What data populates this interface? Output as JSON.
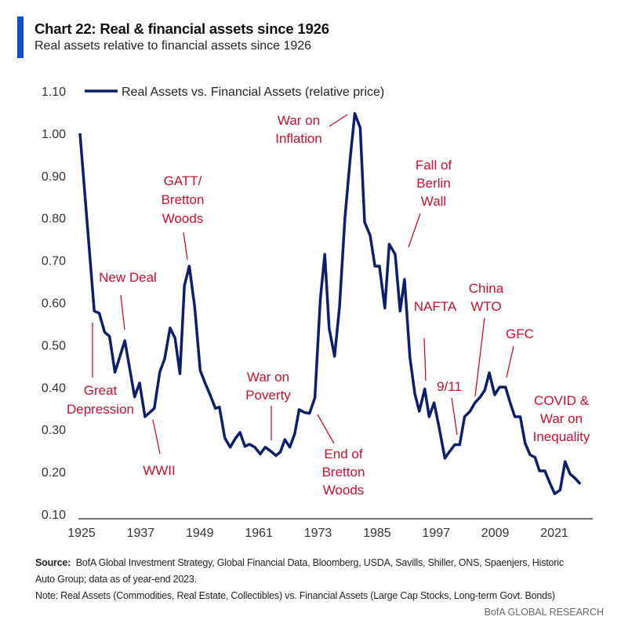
{
  "header": {
    "title": "Chart 22: Real & financial assets since 1926",
    "subtitle": "Real assets relative to financial assets since 1926"
  },
  "footer": {
    "source_label": "Source:",
    "source_text": "BofA Global Investment Strategy, Global Financial Data, Bloomberg, USDA, Savills, Shiller, ONS, Spaenjers, Historic",
    "source_text_2": "Auto Group; data as of year-end 2023.",
    "note": "Note: Real Assets (Commodities, Real Estate, Collectibles) vs. Financial Assets (Large Cap Stocks, Long-term Govt. Bonds)",
    "brand": "BofA GLOBAL RESEARCH"
  },
  "colors": {
    "line": "#0d1f6b",
    "annotation": "#c8102e",
    "title_bar": "#0b4fc9"
  },
  "chart_data": {
    "type": "line",
    "title": "Chart 22: Real & financial assets since 1926",
    "xlabel": "",
    "ylabel": "",
    "xlim": [
      1925,
      2027
    ],
    "ylim": [
      0.1,
      1.1
    ],
    "xticks": [
      "1925",
      "1937",
      "1949",
      "1961",
      "1973",
      "1985",
      "1997",
      "2009",
      "2021"
    ],
    "yticks": [
      "0.10",
      "0.20",
      "0.30",
      "0.40",
      "0.50",
      "0.60",
      "0.70",
      "0.80",
      "0.90",
      "1.00",
      "1.10"
    ],
    "grid": false,
    "legend": "top-left",
    "series": [
      {
        "name": "Real Assets vs. Financial Assets (relative price)",
        "points": [
          [
            1925.0,
            1.0
          ],
          [
            1927.9,
            0.58
          ],
          [
            1928.9,
            0.575
          ],
          [
            1930.0,
            0.53
          ],
          [
            1931.0,
            0.52
          ],
          [
            1932.1,
            0.435
          ],
          [
            1934.1,
            0.51
          ],
          [
            1936.1,
            0.377
          ],
          [
            1937.1,
            0.41
          ],
          [
            1938.2,
            0.33
          ],
          [
            1940.1,
            0.35
          ],
          [
            1941.2,
            0.436
          ],
          [
            1942.2,
            0.467
          ],
          [
            1943.3,
            0.54
          ],
          [
            1944.3,
            0.516
          ],
          [
            1945.3,
            0.432
          ],
          [
            1946.2,
            0.64
          ],
          [
            1947.2,
            0.686
          ],
          [
            1948.3,
            0.59
          ],
          [
            1949.4,
            0.44
          ],
          [
            1950.4,
            0.41
          ],
          [
            1951.5,
            0.38
          ],
          [
            1952.5,
            0.35
          ],
          [
            1953.3,
            0.353
          ],
          [
            1954.4,
            0.28
          ],
          [
            1955.5,
            0.258
          ],
          [
            1956.5,
            0.278
          ],
          [
            1957.5,
            0.293
          ],
          [
            1958.5,
            0.26
          ],
          [
            1959.4,
            0.265
          ],
          [
            1960.5,
            0.258
          ],
          [
            1961.6,
            0.242
          ],
          [
            1962.6,
            0.258
          ],
          [
            1963.7,
            0.249
          ],
          [
            1964.8,
            0.238
          ],
          [
            1965.7,
            0.247
          ],
          [
            1966.6,
            0.276
          ],
          [
            1967.6,
            0.258
          ],
          [
            1968.6,
            0.29
          ],
          [
            1969.5,
            0.347
          ],
          [
            1970.6,
            0.34
          ],
          [
            1971.6,
            0.338
          ],
          [
            1972.7,
            0.375
          ],
          [
            1973.8,
            0.607
          ],
          [
            1974.7,
            0.714
          ],
          [
            1975.6,
            0.539
          ],
          [
            1976.7,
            0.473
          ],
          [
            1977.7,
            0.59
          ],
          [
            1978.8,
            0.8
          ],
          [
            1979.9,
            0.944
          ],
          [
            1980.8,
            1.047
          ],
          [
            1981.9,
            1.013
          ],
          [
            1982.8,
            0.79
          ],
          [
            1983.9,
            0.759
          ],
          [
            1984.9,
            0.686
          ],
          [
            1985.8,
            0.686
          ],
          [
            1986.9,
            0.587
          ],
          [
            1987.8,
            0.738
          ],
          [
            1989.0,
            0.714
          ],
          [
            1990.0,
            0.58
          ],
          [
            1990.9,
            0.655
          ],
          [
            1992.0,
            0.47
          ],
          [
            1993.0,
            0.384
          ],
          [
            1993.9,
            0.343
          ],
          [
            1995.0,
            0.396
          ],
          [
            1995.9,
            0.33
          ],
          [
            1996.9,
            0.363
          ],
          [
            1997.9,
            0.306
          ],
          [
            1999.1,
            0.232
          ],
          [
            2000.0,
            0.247
          ],
          [
            2001.1,
            0.264
          ],
          [
            2002.1,
            0.264
          ],
          [
            2003.1,
            0.33
          ],
          [
            2004.2,
            0.343
          ],
          [
            2005.2,
            0.363
          ],
          [
            2006.3,
            0.377
          ],
          [
            2007.2,
            0.393
          ],
          [
            2008.1,
            0.434
          ],
          [
            2009.2,
            0.382
          ],
          [
            2010.2,
            0.4
          ],
          [
            2011.4,
            0.4
          ],
          [
            2012.4,
            0.361
          ],
          [
            2013.3,
            0.33
          ],
          [
            2014.4,
            0.33
          ],
          [
            2015.4,
            0.267
          ],
          [
            2016.4,
            0.24
          ],
          [
            2017.4,
            0.234
          ],
          [
            2018.3,
            0.202
          ],
          [
            2019.4,
            0.202
          ],
          [
            2020.5,
            0.171
          ],
          [
            2021.4,
            0.148
          ],
          [
            2022.5,
            0.157
          ],
          [
            2023.5,
            0.224
          ],
          [
            2024.5,
            0.195
          ],
          [
            2025.5,
            0.185
          ],
          [
            2026.6,
            0.171
          ]
        ]
      }
    ],
    "annotations": [
      {
        "id": "great-depression",
        "lines": [
          "Great",
          "Depression"
        ]
      },
      {
        "id": "new-deal",
        "lines": [
          "New Deal"
        ]
      },
      {
        "id": "gatt-bretton-woods",
        "lines": [
          "GATT/",
          "Bretton",
          "Woods"
        ]
      },
      {
        "id": "wwii",
        "lines": [
          "WWII"
        ]
      },
      {
        "id": "war-on-poverty",
        "lines": [
          "War on",
          "Poverty"
        ]
      },
      {
        "id": "war-on-inflation",
        "lines": [
          "War on",
          "Inflation"
        ]
      },
      {
        "id": "end-of-bretton-woods",
        "lines": [
          "End of",
          "Bretton",
          "Woods"
        ]
      },
      {
        "id": "fall-of-berlin-wall",
        "lines": [
          "Fall of",
          "Berlin",
          "Wall"
        ]
      },
      {
        "id": "nafta",
        "lines": [
          "NAFTA"
        ]
      },
      {
        "id": "9-11",
        "lines": [
          "9/11"
        ]
      },
      {
        "id": "china-wto",
        "lines": [
          "China",
          "WTO"
        ]
      },
      {
        "id": "gfc",
        "lines": [
          "GFC"
        ]
      },
      {
        "id": "covid-war-on-inequality",
        "lines": [
          "COVID &",
          "War on",
          "Inequality"
        ]
      }
    ]
  }
}
